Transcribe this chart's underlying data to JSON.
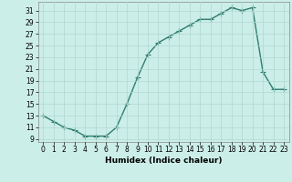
{
  "x": [
    0,
    1,
    2,
    3,
    4,
    5,
    6,
    7,
    8,
    9,
    10,
    11,
    12,
    13,
    14,
    15,
    16,
    17,
    18,
    19,
    20,
    21,
    22,
    23
  ],
  "y": [
    13,
    12,
    11,
    10.5,
    9.5,
    9.5,
    9.5,
    11,
    15,
    19.5,
    23.5,
    25.5,
    26.5,
    27.5,
    28.5,
    29.5,
    29.5,
    30.5,
    31.5,
    31,
    31.5,
    20.5,
    17.5,
    17.5
  ],
  "line_color": "#2e7d6e",
  "marker": "+",
  "markersize": 4,
  "linewidth": 1.0,
  "bg_color": "#cceee8",
  "grid_color": "#b0d8d0",
  "xlabel": "Humidex (Indice chaleur)",
  "xlim": [
    -0.5,
    23.5
  ],
  "ylim": [
    8.5,
    32.5
  ],
  "yticks": [
    9,
    11,
    13,
    15,
    17,
    19,
    21,
    23,
    25,
    27,
    29,
    31
  ],
  "xticks": [
    0,
    1,
    2,
    3,
    4,
    5,
    6,
    7,
    8,
    9,
    10,
    11,
    12,
    13,
    14,
    15,
    16,
    17,
    18,
    19,
    20,
    21,
    22,
    23
  ],
  "tick_fontsize": 5.5,
  "label_fontsize": 6.5
}
